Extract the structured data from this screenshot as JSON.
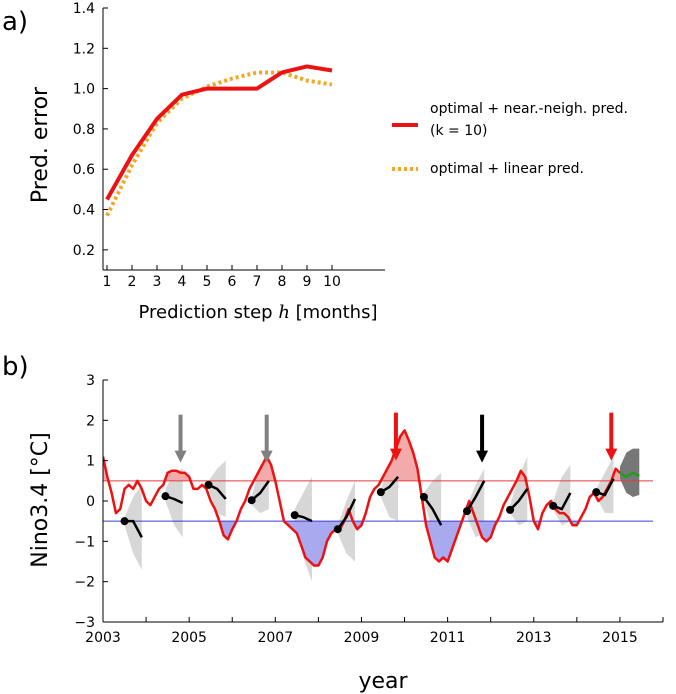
{
  "chart_data": [
    {
      "panel_label": "a)",
      "type": "line",
      "xlabel": "Prediction step",
      "xlabel_var": "h",
      "xlabel_unit": "[months]",
      "ylabel": "Pred. error",
      "ylim": [
        0.1,
        1.4
      ],
      "yticks": [
        "0.2",
        "0.4",
        "0.6",
        "0.8",
        "1.0",
        "1.2",
        "1.4"
      ],
      "categories": [
        "1",
        "2",
        "3",
        "4",
        "5",
        "6",
        "7",
        "8",
        "9",
        "10"
      ],
      "x": [
        1,
        2,
        3,
        4,
        5,
        6,
        7,
        8,
        9,
        10
      ],
      "legend_position": "right",
      "series": [
        {
          "name": "optimal + near.-neigh. pred.",
          "name_line2": "(k = 10)",
          "color": "#ee1111",
          "style": "solid",
          "values": [
            0.45,
            0.67,
            0.85,
            0.97,
            1.0,
            1.0,
            1.0,
            1.08,
            1.11,
            1.09
          ]
        },
        {
          "name": "optimal + linear pred.",
          "color": "#f5a623",
          "style": "dotted",
          "values": [
            0.37,
            0.62,
            0.83,
            0.95,
            1.01,
            1.05,
            1.08,
            1.08,
            1.04,
            1.02
          ]
        }
      ]
    },
    {
      "panel_label": "b)",
      "type": "area",
      "xlabel": "year",
      "ylabel": "Nino3.4",
      "ylabel_unit": "[°C]",
      "xlim": [
        2003,
        2016
      ],
      "ylim": [
        -3,
        3
      ],
      "xticks": [
        "2003",
        "2005",
        "2007",
        "2009",
        "2011",
        "2013",
        "2015"
      ],
      "yticks": [
        "−3",
        "−2",
        "−1",
        "0",
        "1",
        "2",
        "3"
      ],
      "thresholds": [
        {
          "value": 0.5,
          "color": "#e63b3b"
        },
        {
          "value": -0.5,
          "color": "#3b3bd6"
        }
      ],
      "colors": {
        "observed": "#ee1111",
        "warm_fill": "#f2aaaa",
        "cold_fill": "#a9a9f0",
        "forecast": "#000000",
        "spread": "#d3d3d3",
        "final_spread": "#777777",
        "final_forecast": "#1e9e1e",
        "arrow_red": "#ee1111",
        "arrow_grey": "#808080",
        "arrow_black": "#000000"
      },
      "observed": {
        "x": [
          2003.0,
          2003.1,
          2003.2,
          2003.3,
          2003.4,
          2003.5,
          2003.6,
          2003.7,
          2003.8,
          2003.9,
          2004.0,
          2004.1,
          2004.2,
          2004.3,
          2004.4,
          2004.5,
          2004.6,
          2004.7,
          2004.8,
          2004.9,
          2005.0,
          2005.1,
          2005.2,
          2005.3,
          2005.4,
          2005.5,
          2005.6,
          2005.7,
          2005.8,
          2005.9,
          2006.0,
          2006.1,
          2006.2,
          2006.3,
          2006.4,
          2006.5,
          2006.6,
          2006.7,
          2006.8,
          2006.9,
          2007.0,
          2007.1,
          2007.2,
          2007.3,
          2007.4,
          2007.5,
          2007.6,
          2007.7,
          2007.8,
          2007.9,
          2008.0,
          2008.1,
          2008.2,
          2008.3,
          2008.4,
          2008.5,
          2008.6,
          2008.7,
          2008.8,
          2008.9,
          2009.0,
          2009.1,
          2009.2,
          2009.3,
          2009.4,
          2009.5,
          2009.6,
          2009.7,
          2009.8,
          2009.9,
          2010.0,
          2010.1,
          2010.2,
          2010.3,
          2010.4,
          2010.5,
          2010.6,
          2010.7,
          2010.8,
          2010.9,
          2011.0,
          2011.1,
          2011.2,
          2011.3,
          2011.4,
          2011.5,
          2011.6,
          2011.7,
          2011.8,
          2011.9,
          2012.0,
          2012.1,
          2012.2,
          2012.3,
          2012.4,
          2012.5,
          2012.6,
          2012.7,
          2012.8,
          2012.9,
          2013.0,
          2013.1,
          2013.2,
          2013.3,
          2013.4,
          2013.5,
          2013.6,
          2013.7,
          2013.8,
          2013.9,
          2014.0,
          2014.1,
          2014.2,
          2014.3,
          2014.4,
          2014.5,
          2014.6,
          2014.7,
          2014.8,
          2014.9,
          2015.0
        ],
        "y": [
          1.1,
          0.6,
          0.2,
          -0.3,
          -0.2,
          0.3,
          0.4,
          0.3,
          0.5,
          0.3,
          0.0,
          -0.1,
          0.1,
          0.3,
          0.4,
          0.7,
          0.75,
          0.75,
          0.7,
          0.7,
          0.6,
          0.3,
          0.3,
          0.4,
          0.3,
          0.0,
          -0.2,
          -0.5,
          -0.85,
          -0.95,
          -0.7,
          -0.5,
          -0.2,
          0.0,
          0.3,
          0.5,
          0.7,
          0.9,
          1.1,
          0.9,
          0.5,
          0.0,
          -0.5,
          -0.6,
          -0.7,
          -0.8,
          -1.1,
          -1.4,
          -1.5,
          -1.6,
          -1.6,
          -1.4,
          -1.0,
          -0.8,
          -0.7,
          -0.7,
          -0.5,
          -0.2,
          -0.5,
          -0.7,
          -0.6,
          -0.3,
          0.1,
          0.3,
          0.4,
          0.6,
          0.8,
          1.0,
          1.3,
          1.6,
          1.75,
          1.5,
          1.2,
          0.8,
          0.1,
          -0.6,
          -1.0,
          -1.4,
          -1.5,
          -1.4,
          -1.5,
          -1.2,
          -0.9,
          -0.6,
          -0.3,
          0.0,
          -0.3,
          -0.6,
          -0.9,
          -1.0,
          -0.9,
          -0.6,
          -0.4,
          -0.1,
          0.1,
          0.3,
          0.5,
          0.75,
          0.6,
          0.1,
          -0.5,
          -0.7,
          -0.3,
          -0.1,
          0.0,
          -0.2,
          -0.3,
          -0.3,
          -0.4,
          -0.6,
          -0.6,
          -0.4,
          -0.2,
          0.1,
          0.2,
          0.0,
          0.1,
          0.3,
          0.5,
          0.8,
          0.7
        ]
      },
      "forecasts": [
        {
          "x": [
            2003.5,
            2003.7,
            2003.9
          ],
          "y": [
            -0.5,
            -0.5,
            -0.9
          ],
          "spread_low": [
            -0.6,
            -1.3,
            -1.7
          ],
          "spread_high": [
            -0.4,
            0.1,
            0.4
          ]
        },
        {
          "x": [
            2004.45,
            2004.65,
            2004.85
          ],
          "y": [
            0.12,
            0.05,
            -0.05
          ],
          "spread_low": [
            0.0,
            -0.6,
            -0.9
          ],
          "spread_high": [
            0.3,
            0.7,
            0.8
          ]
        },
        {
          "x": [
            2005.45,
            2005.65,
            2005.85
          ],
          "y": [
            0.4,
            0.3,
            0.05
          ],
          "spread_low": [
            0.3,
            -0.3,
            -0.4
          ],
          "spread_high": [
            0.5,
            0.8,
            1.0
          ]
        },
        {
          "x": [
            2006.45,
            2006.65,
            2006.85
          ],
          "y": [
            0.02,
            0.2,
            0.5
          ],
          "spread_low": [
            -0.1,
            -0.3,
            -0.2
          ],
          "spread_high": [
            0.1,
            0.9,
            1.1
          ]
        },
        {
          "x": [
            2007.45,
            2007.65,
            2007.85
          ],
          "y": [
            -0.35,
            -0.4,
            -0.5
          ],
          "spread_low": [
            -0.5,
            -1.4,
            -2.0
          ],
          "spread_high": [
            -0.2,
            0.2,
            0.6
          ]
        },
        {
          "x": [
            2008.45,
            2008.65,
            2008.85
          ],
          "y": [
            -0.7,
            -0.4,
            0.05
          ],
          "spread_low": [
            -0.8,
            -1.3,
            -1.5
          ],
          "spread_high": [
            -0.6,
            0.0,
            0.5
          ]
        },
        {
          "x": [
            2009.45,
            2009.65,
            2009.85
          ],
          "y": [
            0.22,
            0.35,
            0.6
          ],
          "spread_low": [
            0.1,
            -0.4,
            -0.5
          ],
          "spread_high": [
            0.3,
            0.9,
            1.2
          ]
        },
        {
          "x": [
            2010.45,
            2010.65,
            2010.85
          ],
          "y": [
            0.1,
            -0.2,
            -0.6
          ],
          "spread_low": [
            0.0,
            -0.7,
            -1.0
          ],
          "spread_high": [
            0.2,
            0.5,
            0.7
          ]
        },
        {
          "x": [
            2011.45,
            2011.65,
            2011.85
          ],
          "y": [
            -0.25,
            0.1,
            0.5
          ],
          "spread_low": [
            -0.4,
            -0.9,
            -0.8
          ],
          "spread_high": [
            -0.1,
            0.4,
            0.8
          ]
        },
        {
          "x": [
            2012.45,
            2012.65,
            2012.85
          ],
          "y": [
            -0.22,
            0.0,
            0.3
          ],
          "spread_low": [
            -0.3,
            -0.6,
            -0.5
          ],
          "spread_high": [
            -0.1,
            0.6,
            1.1
          ]
        },
        {
          "x": [
            2013.45,
            2013.65,
            2013.85
          ],
          "y": [
            -0.12,
            -0.2,
            0.2
          ],
          "spread_low": [
            -0.2,
            -0.6,
            -0.5
          ],
          "spread_high": [
            0.0,
            0.6,
            0.9
          ]
        },
        {
          "x": [
            2014.45,
            2014.65,
            2014.85
          ],
          "y": [
            0.22,
            0.15,
            0.55
          ],
          "spread_low": [
            0.1,
            -0.3,
            -0.3
          ],
          "spread_high": [
            0.3,
            0.7,
            1.1
          ]
        }
      ],
      "final_forecast": {
        "x": [
          2015.0,
          2015.15,
          2015.3,
          2015.45
        ],
        "y": [
          0.7,
          0.6,
          0.7,
          0.62
        ],
        "spread_low": [
          0.55,
          0.2,
          0.1,
          0.15
        ],
        "spread_high": [
          0.85,
          1.2,
          1.3,
          1.3
        ]
      },
      "arrows": [
        {
          "x": 2004.8,
          "tip": 0.95,
          "color": "arrow_grey"
        },
        {
          "x": 2006.8,
          "tip": 0.95,
          "color": "arrow_grey"
        },
        {
          "x": 2009.8,
          "tip": 1.0,
          "color": "arrow_red"
        },
        {
          "x": 2011.8,
          "tip": 0.95,
          "color": "arrow_black"
        },
        {
          "x": 2014.8,
          "tip": 1.0,
          "color": "arrow_red"
        }
      ]
    }
  ]
}
